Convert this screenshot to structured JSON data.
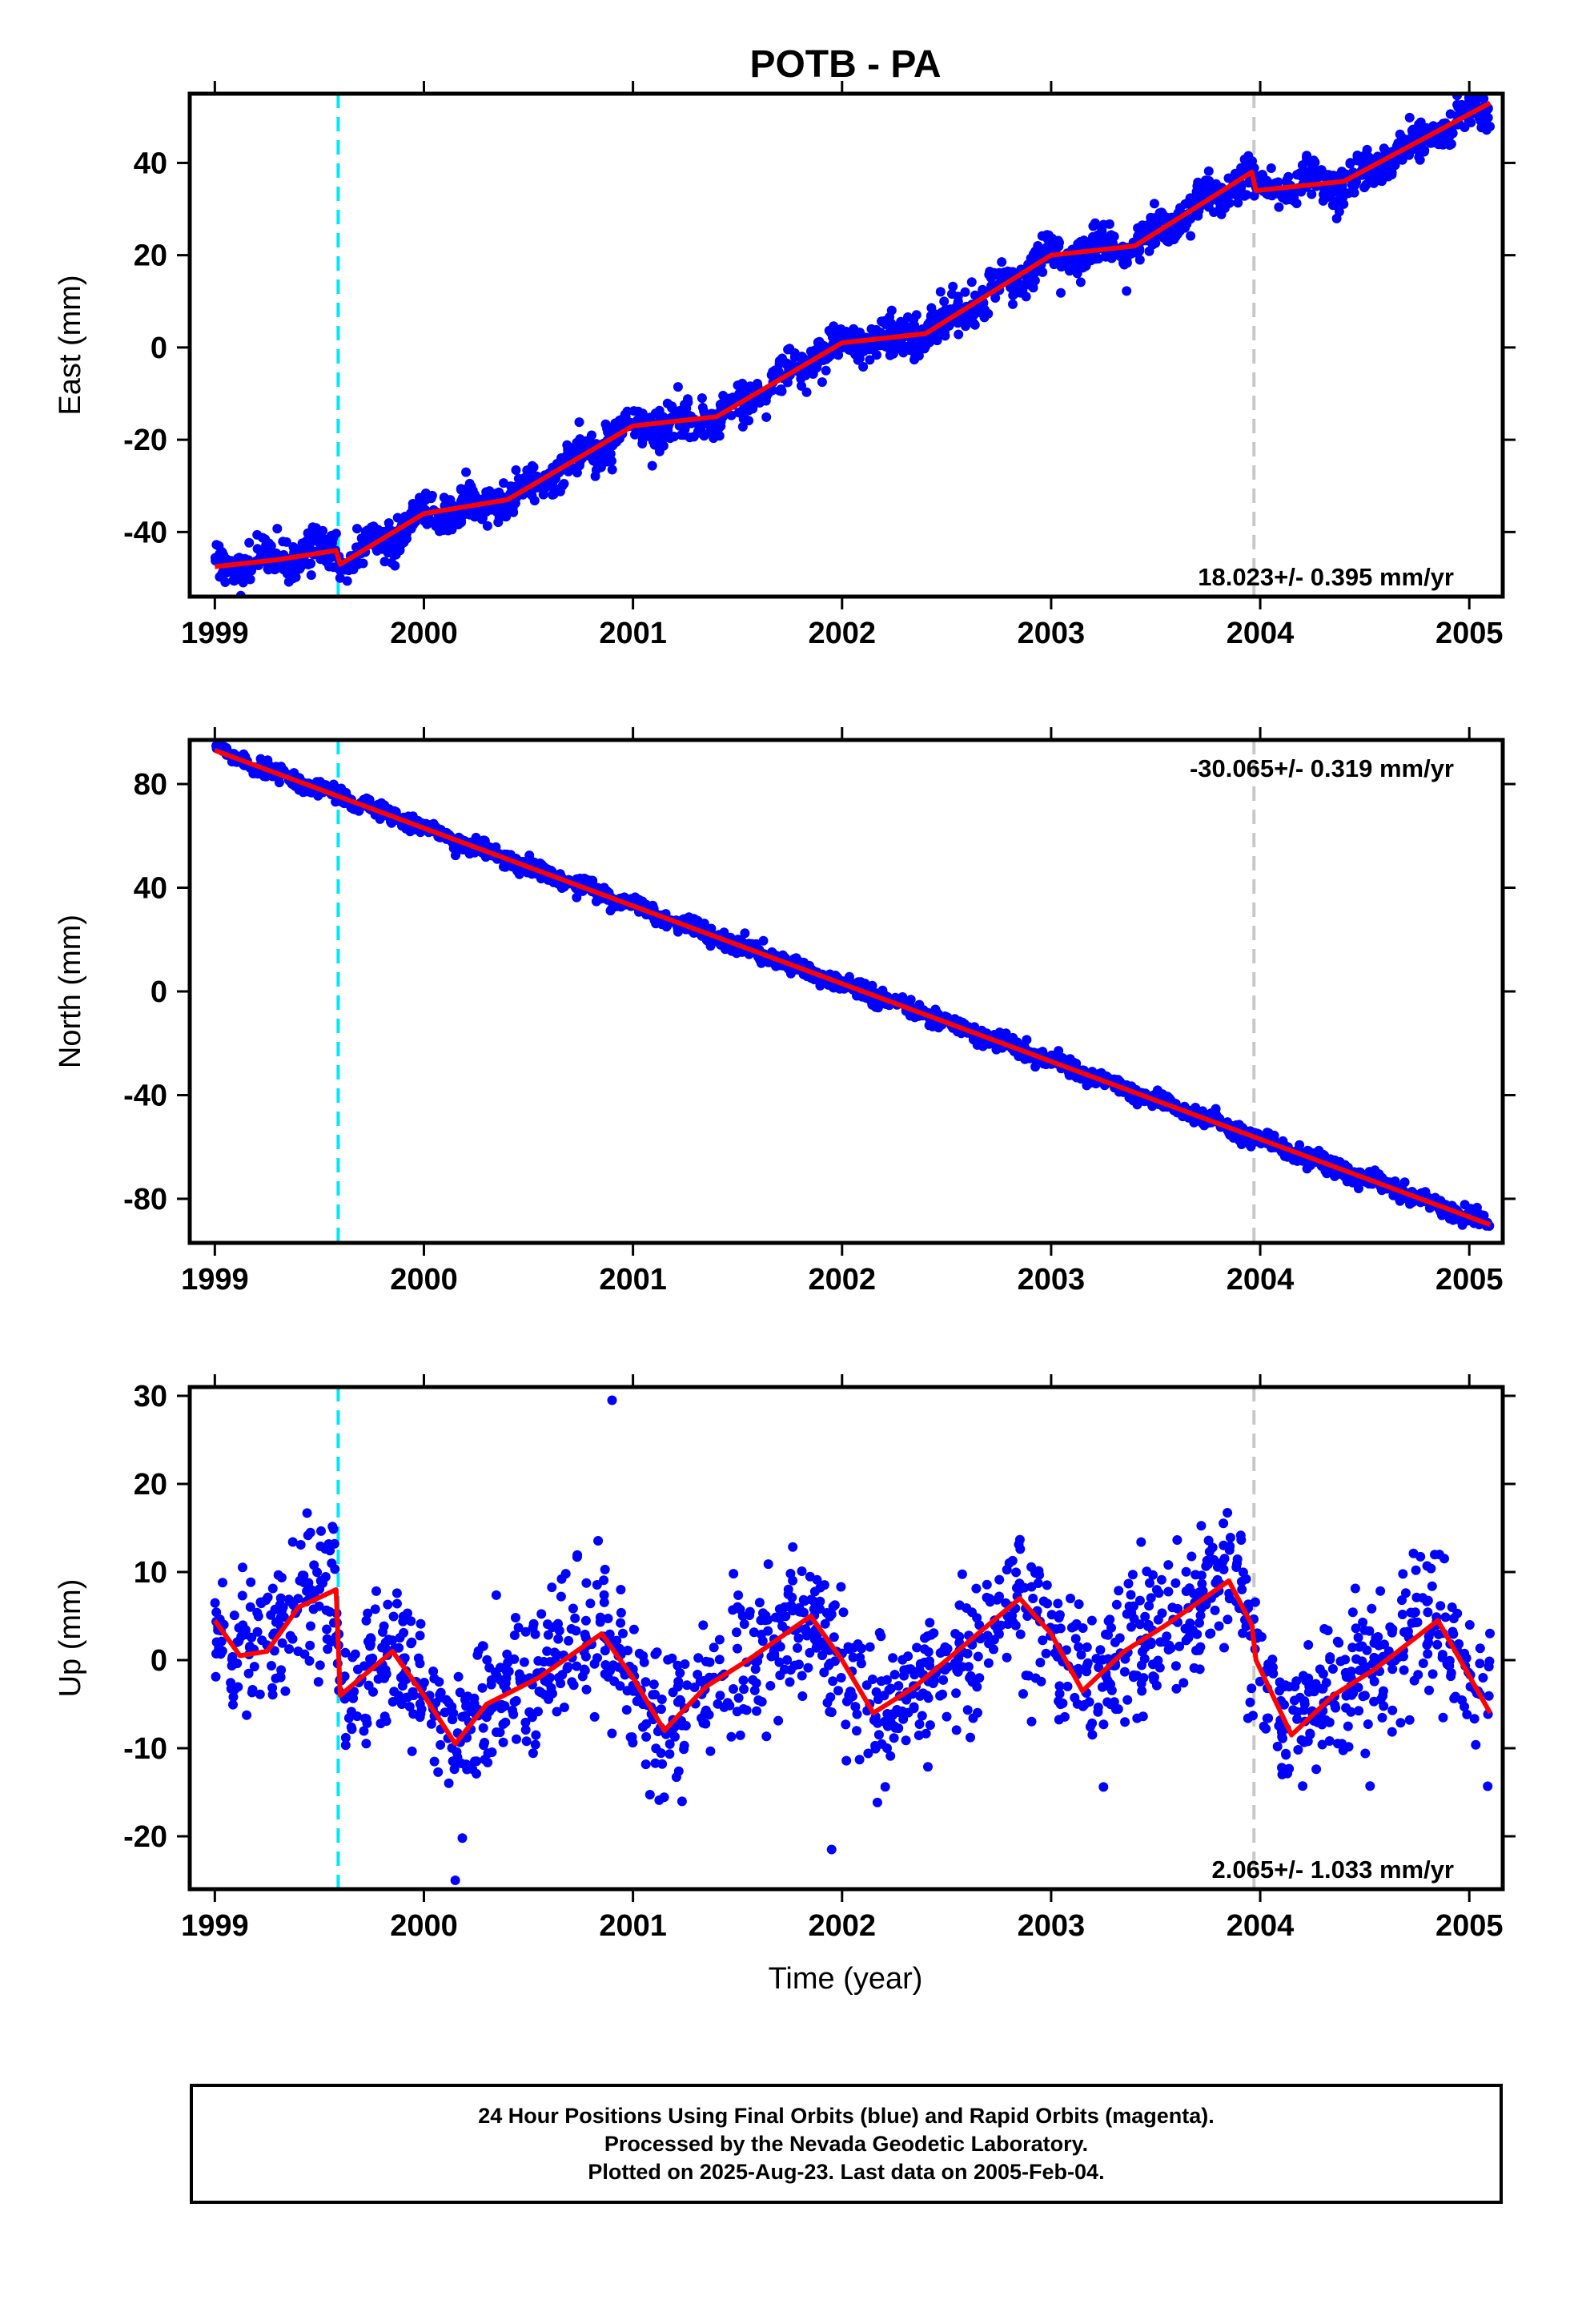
{
  "title": "POTB - PA",
  "colors": {
    "final_points": "#0000ff",
    "model_line": "#ff0000",
    "antenna_change": "#00e5ff",
    "equipment_change": "#c8c8c8",
    "frame": "#000000"
  },
  "xaxis": {
    "label": "Time (year)",
    "range": [
      1998.88,
      2005.16
    ],
    "ticks": [
      1999,
      2000,
      2001,
      2002,
      2003,
      2004,
      2005
    ]
  },
  "events": {
    "antenna_change_year": 1999.59,
    "equipment_change_year": 2003.97
  },
  "chart_data": [
    {
      "type": "scatter",
      "name": "east",
      "ylabel": "East (mm)",
      "ylim": [
        -54,
        55
      ],
      "yticks": [
        -40,
        -20,
        0,
        20,
        40
      ],
      "velocity": "18.023+/- 0.395 mm/yr",
      "label_position": "bottom-right",
      "model": {
        "rate": 18.023,
        "intercept": -47.5,
        "amp_annual": 2.5,
        "phase": 2.0,
        "offsets": [
          {
            "year": 1999.59,
            "size": -5
          },
          {
            "year": 2003.97,
            "size": -4
          }
        ]
      },
      "scatter": 2.0,
      "series": [
        {
          "name": "final_points",
          "points": "24 hour positions, final orbits"
        },
        {
          "name": "model_line",
          "x": [
            1999.0,
            1999.3,
            1999.58,
            1999.6,
            2000.0,
            2000.4,
            2001.0,
            2001.4,
            2002.0,
            2002.4,
            2003.0,
            2003.4,
            2003.96,
            2003.98,
            2004.4,
            2005.1
          ],
          "y": [
            -47.5,
            -46,
            -44,
            -47,
            -36,
            -33,
            -17,
            -15,
            1,
            3,
            20,
            22,
            38,
            34,
            36,
            53
          ]
        }
      ]
    },
    {
      "type": "scatter",
      "name": "north",
      "ylabel": "North (mm)",
      "ylim": [
        -97,
        97
      ],
      "yticks": [
        -80,
        -40,
        0,
        40,
        80
      ],
      "velocity": "-30.065+/- 0.319 mm/yr",
      "label_position": "top-right",
      "model": {
        "rate": -30.065,
        "intercept": 93,
        "amp_annual": 1.5,
        "phase": 0.5,
        "offsets": []
      },
      "scatter": 1.5,
      "series": [
        {
          "name": "final_points",
          "points": "24 hour positions, final orbits"
        },
        {
          "name": "model_line",
          "x": [
            1999.0,
            2000.0,
            2001.0,
            2002.0,
            2003.0,
            2004.0,
            2005.1
          ],
          "y": [
            93,
            63,
            33,
            3,
            -27,
            -57,
            -90
          ]
        }
      ]
    },
    {
      "type": "scatter",
      "name": "up",
      "ylabel": "Up (mm)",
      "ylim": [
        -26,
        31
      ],
      "yticks": [
        -20,
        -10,
        0,
        10,
        20,
        30
      ],
      "velocity": "2.065+/- 1.033 mm/yr",
      "label_position": "bottom-right",
      "scatter": 4.0,
      "series": [
        {
          "name": "final_points",
          "points": "24 hour positions, final orbits"
        },
        {
          "name": "model_line",
          "x": [
            1999.0,
            1999.12,
            1999.25,
            1999.4,
            1999.58,
            1999.6,
            1999.7,
            1999.85,
            2000.0,
            2000.15,
            2000.3,
            2000.55,
            2000.85,
            2001.0,
            2001.15,
            2001.35,
            2001.55,
            2001.85,
            2002.0,
            2002.15,
            2002.35,
            2002.55,
            2002.85,
            2003.0,
            2003.15,
            2003.35,
            2003.55,
            2003.85,
            2003.96,
            2003.98,
            2004.15,
            2004.35,
            2004.55,
            2004.85,
            2005.1
          ],
          "y": [
            4.5,
            0.5,
            1,
            6,
            8,
            -4,
            -2,
            1,
            -4,
            -9.5,
            -5,
            -2,
            3,
            -2,
            -8,
            -3,
            0,
            5,
            0,
            -6,
            -3,
            1,
            7,
            3,
            -3.5,
            1,
            4,
            9,
            4,
            0,
            -8.5,
            -4,
            -1,
            4.5,
            -6
          ]
        }
      ],
      "outliers": [
        {
          "x": 2000.9,
          "y": 29.5
        },
        {
          "x": 2001.95,
          "y": -21.5
        },
        {
          "x": 2000.15,
          "y": -25
        }
      ]
    }
  ],
  "caption": {
    "line1": "24 Hour Positions Using Final Orbits (blue) and Rapid Orbits (magenta).",
    "line2": "Processed by the Nevada Geodetic Laboratory.",
    "line3": "Plotted on 2025-Aug-23. Last data on 2005-Feb-04."
  }
}
